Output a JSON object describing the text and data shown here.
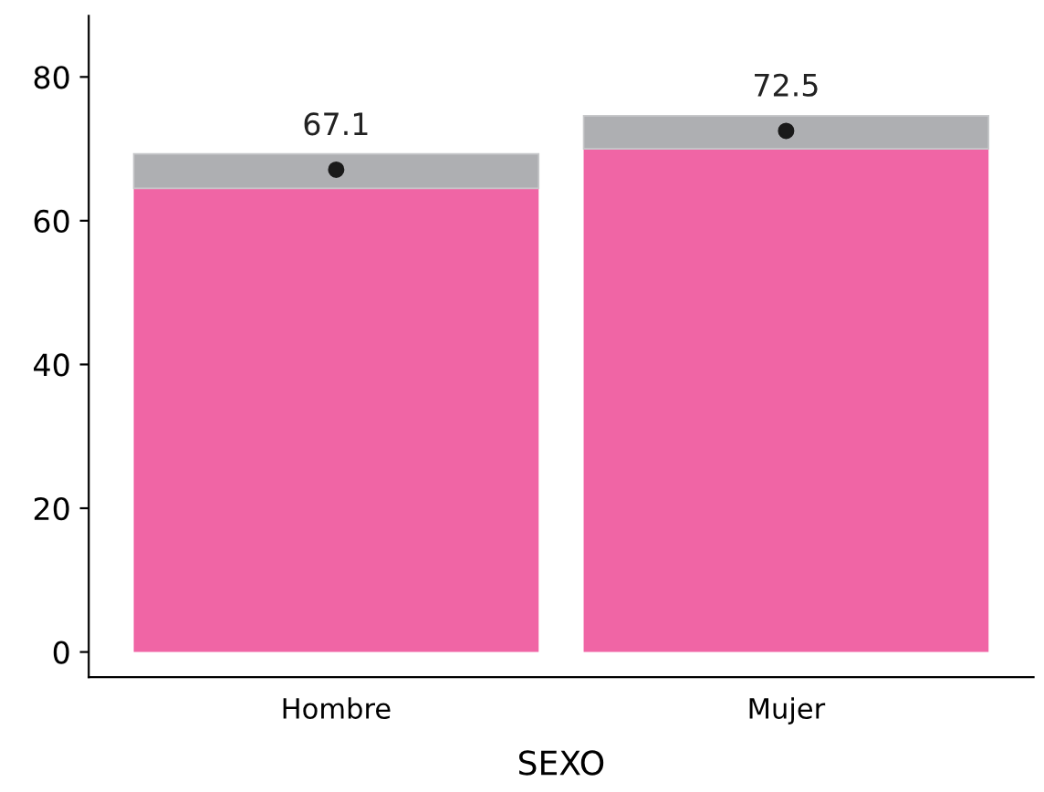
{
  "chart_data": {
    "type": "bar",
    "stacked": true,
    "xlabel": "SEXO",
    "categories": [
      "Hombre",
      "Mujer"
    ],
    "series": [
      {
        "color": "#f065a5",
        "values": [
          64.5,
          70.0
        ]
      },
      {
        "color": "#aeafb2",
        "values": [
          4.8,
          4.6
        ]
      },
      {
        "type": "scatter",
        "color": "#1a1a1a",
        "x": [
          "Hombre",
          "Mujer"
        ],
        "values": [
          67.1,
          72.5
        ],
        "data_labels": true
      }
    ],
    "ylim": [
      -3.5,
      88.5
    ],
    "yticks": [
      0,
      20,
      40,
      60,
      80
    ],
    "grid": false,
    "legend": false,
    "marker": "circle"
  }
}
